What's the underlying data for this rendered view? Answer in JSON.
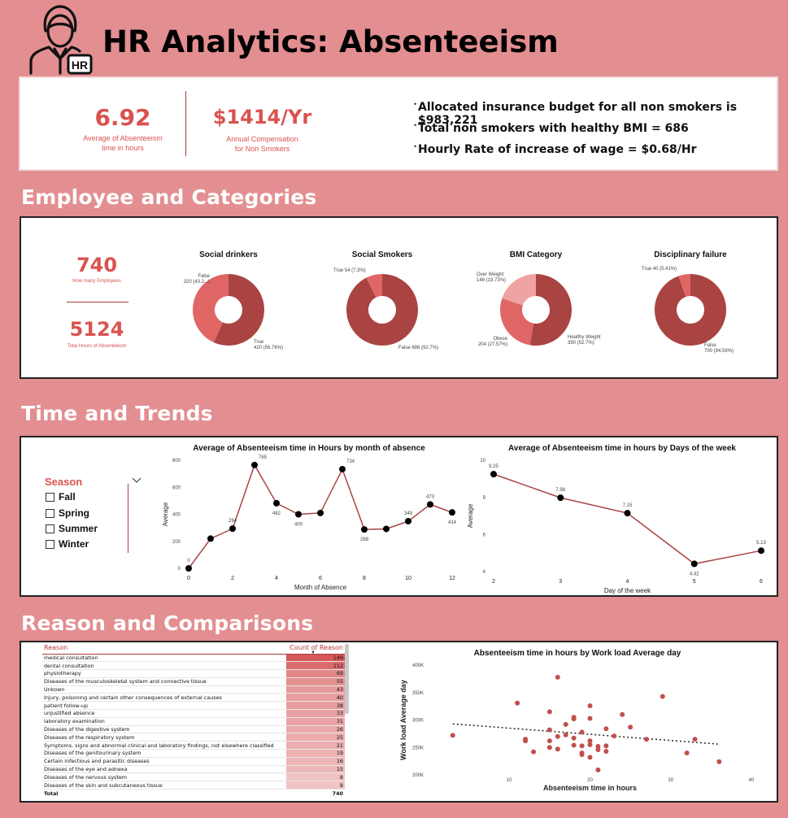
{
  "header": {
    "title": "HR Analytics: Absenteeism",
    "icon_badge": "HR"
  },
  "kpis": {
    "avg_absenteeism": {
      "value": "6.92",
      "label_line1": "Average of Absenteeism",
      "label_line2": "time in hours"
    },
    "annual_comp": {
      "value": "$1414/Yr",
      "label_line1": "Annual Compensation",
      "label_line2": "for Non Smokers"
    }
  },
  "insights": [
    "Allocated insurance budget for all non smokers is $983,221",
    "Total non smokers with healthy BMI = 686",
    "Hourly Rate of increase of wage = $0.68/Hr"
  ],
  "sections": {
    "employee": "Employee and Categories",
    "time": "Time and Trends",
    "reason": "Reason and Comparisons"
  },
  "employee_cards": {
    "employees": {
      "value": "740",
      "label": "How many Employees"
    },
    "hours": {
      "value": "5124",
      "label": "Total Hours of Absenteeism"
    }
  },
  "donuts": [
    {
      "title": "Social drinkers",
      "slices": [
        {
          "label": "True",
          "value": 420,
          "text": "420 (56.76%)",
          "color": "#a94442"
        },
        {
          "label": "False",
          "value": 320,
          "text": "320 (43.2...)",
          "color": "#e06666"
        }
      ]
    },
    {
      "title": "Social Smokers",
      "slices": [
        {
          "label": "False",
          "value": 686,
          "text": "False 686 (92.7%)",
          "color": "#a94442"
        },
        {
          "label": "True",
          "value": 54,
          "text": "True 54 (7.3%)",
          "color": "#e06666"
        }
      ]
    },
    {
      "title": "BMI Category",
      "slices": [
        {
          "label": "Healthy Weight",
          "value": 390,
          "text": "390 (52.7%)",
          "color": "#a94442"
        },
        {
          "label": "Obese",
          "value": 204,
          "text": "204 (27.57%)",
          "color": "#e06666"
        },
        {
          "label": "Over Weight",
          "value": 146,
          "text": "146 (19.73%)",
          "color": "#f0a3a3"
        }
      ]
    },
    {
      "title": "Disciplinary failure",
      "slices": [
        {
          "label": "False",
          "value": 700,
          "text": "700 (94.59%)",
          "color": "#a94442"
        },
        {
          "label": "True",
          "value": 40,
          "text": "True 40 (5.41%)",
          "color": "#e06666"
        }
      ]
    }
  ],
  "season_filter": {
    "title": "Season",
    "options": [
      "Fall",
      "Spring",
      "Summer",
      "Winter"
    ]
  },
  "chart_data": [
    {
      "type": "line",
      "title": "Average of Absenteeism time in Hours by month of absence",
      "xlabel": "Month of Absence",
      "ylabel": "Average",
      "x": [
        0,
        1,
        2,
        3,
        4,
        5,
        6,
        7,
        8,
        9,
        10,
        11,
        12
      ],
      "values": [
        0,
        220,
        294,
        765,
        482,
        400,
        410,
        734,
        288,
        292,
        349,
        473,
        414
      ],
      "point_labels": [
        "0",
        "",
        "294",
        "765",
        "482",
        "400",
        "",
        "734",
        "288",
        "",
        "349",
        "473",
        "414"
      ],
      "ylim": [
        0,
        800
      ],
      "yticks": [
        0,
        200,
        400,
        600,
        800
      ],
      "xticks": [
        0,
        2,
        4,
        6,
        8,
        10,
        12
      ]
    },
    {
      "type": "line",
      "title": "Average of Absenteeism time in hours by Days of the week",
      "xlabel": "Day of the week",
      "ylabel": "Average",
      "x": [
        2,
        3,
        4,
        5,
        6
      ],
      "values": [
        9.25,
        7.98,
        7.15,
        4.42,
        5.13
      ],
      "point_labels": [
        "9.25",
        "7.98",
        "7.15",
        "4.42",
        "5.13"
      ],
      "ylim": [
        4,
        10
      ],
      "yticks": [
        4,
        6,
        8,
        10
      ],
      "xticks": [
        2,
        3,
        4,
        5,
        6
      ]
    },
    {
      "type": "table",
      "columns": [
        "Reason",
        "Count of Reason"
      ],
      "rows": [
        [
          "medical consultation",
          149
        ],
        [
          "dental consultation",
          112
        ],
        [
          "physiotherapy",
          69
        ],
        [
          "Diseases of the musculoskeletal system and connective tissue",
          55
        ],
        [
          "Unkown",
          43
        ],
        [
          "Injury, poisoning and certain other consequences of external causes",
          40
        ],
        [
          "patient follow-up",
          38
        ],
        [
          "unjustified absence",
          33
        ],
        [
          "laboratory examination",
          31
        ],
        [
          "Diseases of the digestive system",
          26
        ],
        [
          "Diseases of the respiratory system",
          25
        ],
        [
          "Symptoms, signs and abnormal clinical and laboratory findings, not elsewhere classified",
          21
        ],
        [
          "Diseases of the genitourinary system",
          19
        ],
        [
          "Certain infectious and parasitic diseases",
          16
        ],
        [
          "Diseases of the eye and adnexa",
          15
        ],
        [
          "Diseases of the nervous system",
          8
        ],
        [
          "Diseases of the skin and subcutaneous tissue",
          8
        ]
      ],
      "total_label": "Total",
      "total_value": 740
    },
    {
      "type": "scatter",
      "title": "Absenteeism time in hours by Work load Average day",
      "xlabel": "Absenteeism time in hours",
      "ylabel": "Work load Average day",
      "xlim": [
        0,
        40
      ],
      "ylim": [
        200,
        400
      ],
      "xticks": [
        10,
        20,
        30,
        40
      ],
      "yticks": [
        200,
        250,
        300,
        350,
        400
      ],
      "ytick_labels": [
        "200K",
        "250K",
        "300K",
        "350K",
        "400K"
      ],
      "points": [
        [
          3,
          272
        ],
        [
          11,
          331
        ],
        [
          12,
          265
        ],
        [
          12,
          262
        ],
        [
          13,
          242
        ],
        [
          15,
          315
        ],
        [
          15,
          262
        ],
        [
          15,
          250
        ],
        [
          15,
          282
        ],
        [
          16,
          378
        ],
        [
          16,
          270
        ],
        [
          16,
          247
        ],
        [
          17,
          292
        ],
        [
          17,
          273
        ],
        [
          18,
          305
        ],
        [
          18,
          302
        ],
        [
          18,
          254
        ],
        [
          18,
          267
        ],
        [
          19,
          278
        ],
        [
          19,
          240
        ],
        [
          19,
          253
        ],
        [
          19,
          237
        ],
        [
          20,
          326
        ],
        [
          20,
          303
        ],
        [
          20,
          262
        ],
        [
          20,
          255
        ],
        [
          20,
          232
        ],
        [
          21,
          252
        ],
        [
          21,
          209
        ],
        [
          21,
          246
        ],
        [
          22,
          284
        ],
        [
          22,
          243
        ],
        [
          22,
          253
        ],
        [
          23,
          271
        ],
        [
          24,
          310
        ],
        [
          25,
          287
        ],
        [
          27,
          265
        ],
        [
          29,
          343
        ],
        [
          32,
          240
        ],
        [
          33,
          265
        ],
        [
          36,
          224
        ]
      ],
      "trend": [
        [
          3,
          293
        ],
        [
          36,
          256
        ]
      ]
    }
  ]
}
